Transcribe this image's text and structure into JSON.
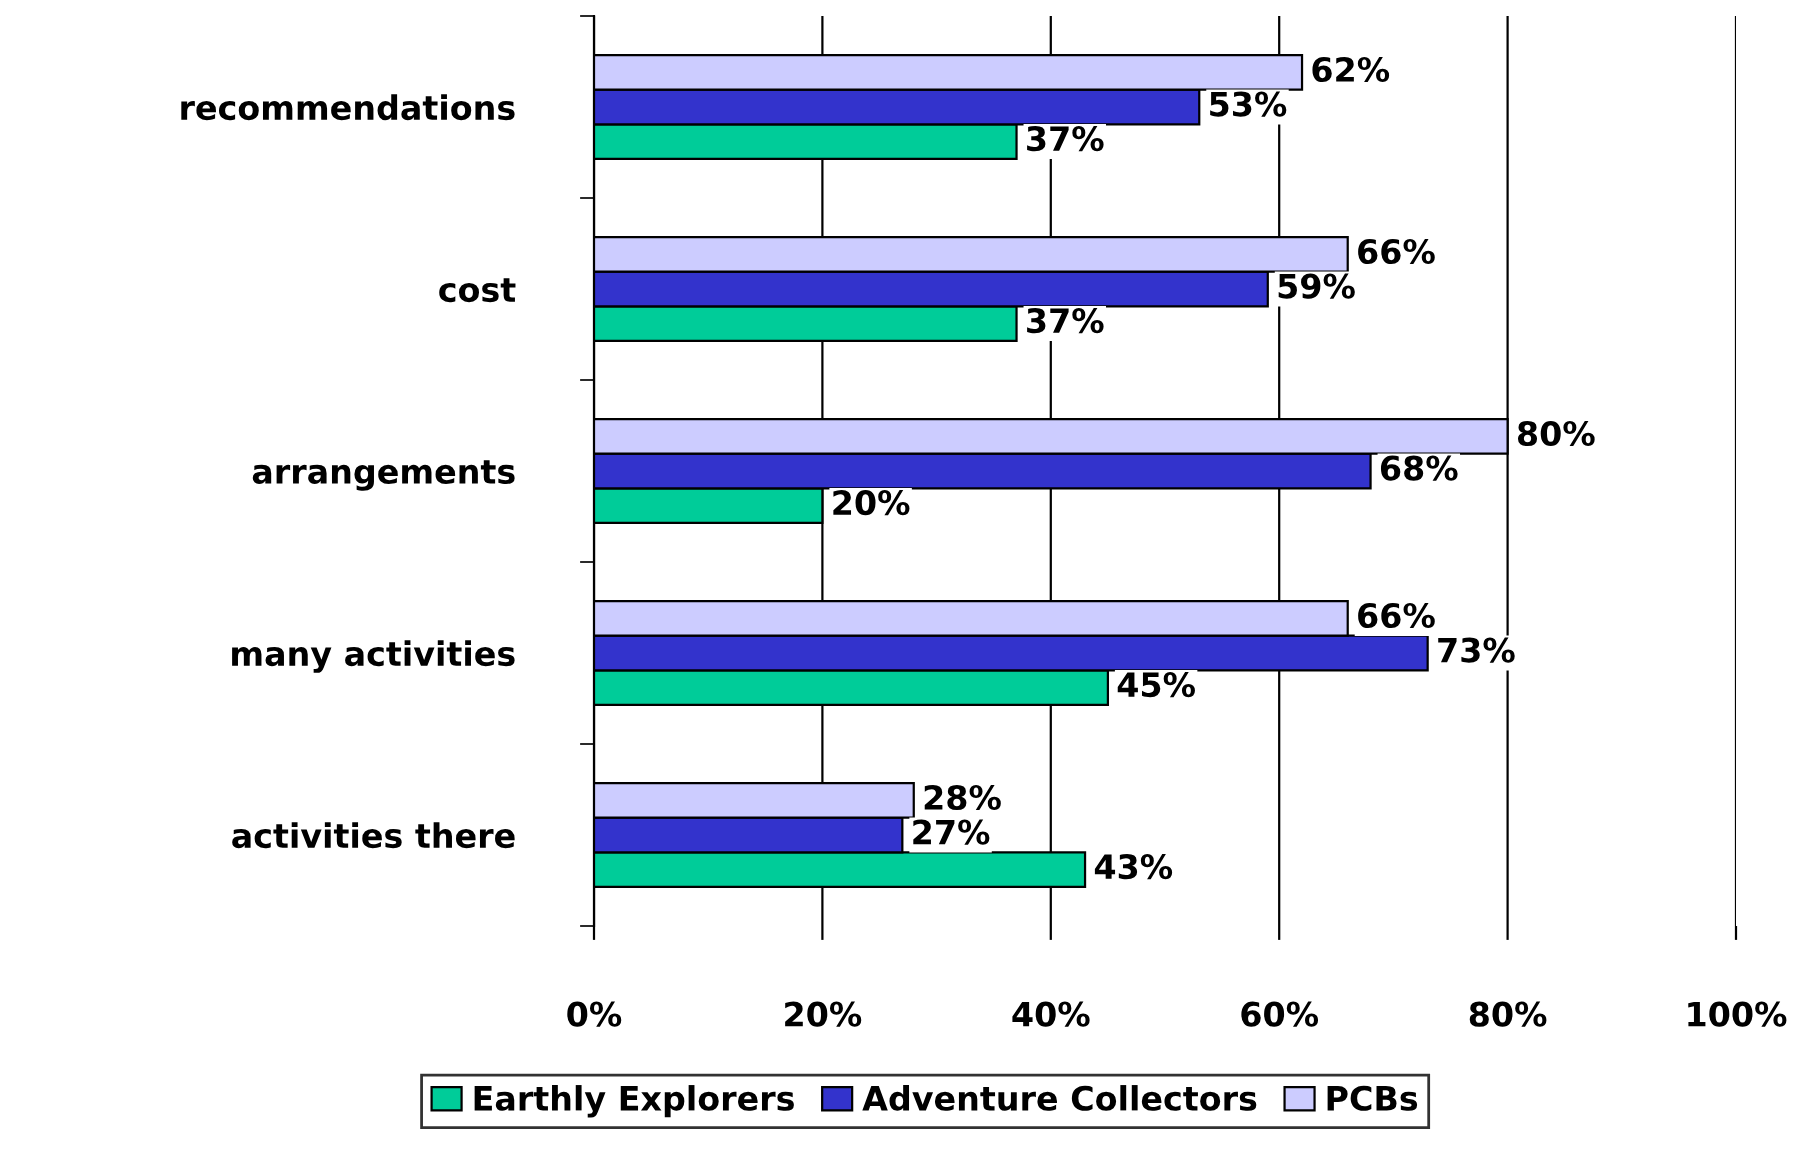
{
  "chart_data": {
    "type": "bar",
    "orientation": "horizontal",
    "categories": [
      "recommendations",
      "cost",
      "arrangements",
      "many activities",
      "activities there"
    ],
    "series": [
      {
        "name": "Earthly Explorers",
        "color": "#00cc99",
        "values": [
          37,
          37,
          20,
          45,
          43
        ],
        "value_labels": [
          "37%",
          "37%",
          "20%",
          "45%",
          "43%"
        ]
      },
      {
        "name": "Adventure Collectors",
        "color": "#3333cc",
        "values": [
          53,
          59,
          68,
          73,
          27
        ],
        "value_labels": [
          "53%",
          "59%",
          "68%",
          "73%",
          "27%"
        ]
      },
      {
        "name": "PCBs",
        "color": "#ccccff",
        "values": [
          62,
          66,
          80,
          66,
          28
        ],
        "value_labels": [
          "62%",
          "66%",
          "80%",
          "66%",
          "28%"
        ]
      }
    ],
    "xlim": [
      0,
      100
    ],
    "xticks": [
      {
        "value": 0,
        "label": "0%"
      },
      {
        "value": 20,
        "label": "20%"
      },
      {
        "value": 40,
        "label": "40%"
      },
      {
        "value": 60,
        "label": "60%"
      },
      {
        "value": 80,
        "label": "80%"
      },
      {
        "value": 100,
        "label": "100%"
      }
    ],
    "grid": "x",
    "legend": "bottom"
  }
}
